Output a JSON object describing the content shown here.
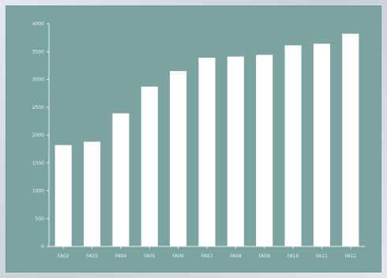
{
  "chart_data": {
    "type": "bar",
    "title": "",
    "xlabel": "",
    "ylabel": "",
    "categories": [
      "FA02",
      "FA03",
      "FA04",
      "FA05",
      "FA06",
      "FA07",
      "FA08",
      "FA09",
      "FA10",
      "FA11",
      "FA12"
    ],
    "values": [
      1820,
      1880,
      2390,
      2870,
      3150,
      3390,
      3410,
      3440,
      3610,
      3640,
      3820
    ],
    "ylim": [
      0,
      4000
    ],
    "yticks": [
      0,
      500,
      1000,
      1500,
      2000,
      2500,
      3000,
      3500,
      4000
    ],
    "ytick_labels": [
      "0",
      "500",
      "1000",
      "1500",
      "2000",
      "2500",
      "3000",
      "3500",
      "4000"
    ],
    "grid": false,
    "legend": "none"
  },
  "colors": {
    "panel_background": "#7ba39f",
    "bar_fill": "#ffffff",
    "axis_line": "#e9f2f1",
    "tick_text": "#e9f2f1"
  }
}
